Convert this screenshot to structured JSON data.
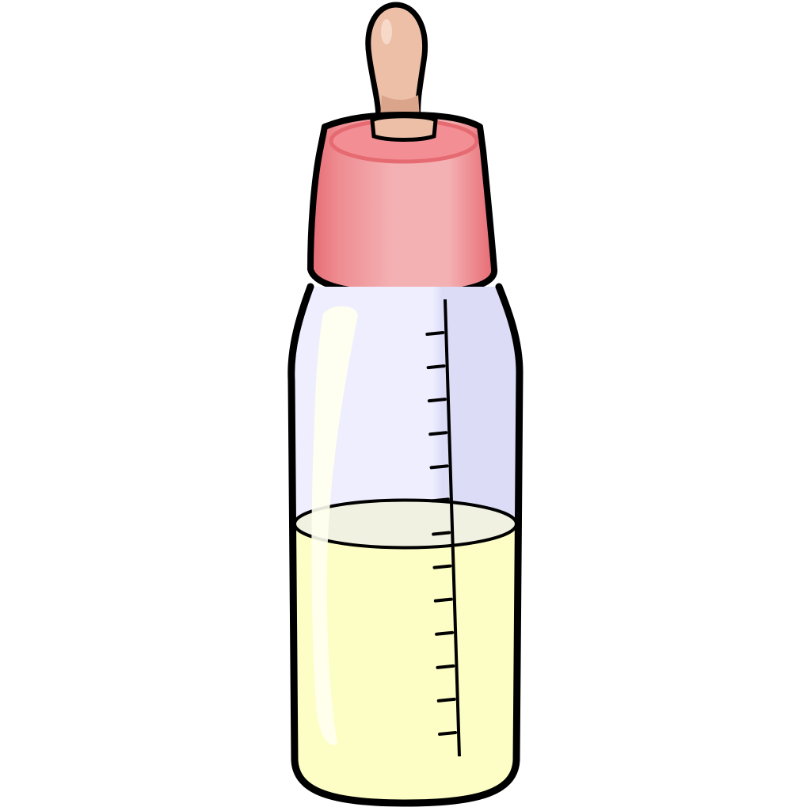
{
  "illustration": {
    "subject": "baby-bottle-icon",
    "fill_level": 0.55,
    "measurement_ticks": 13
  },
  "colors": {
    "background": "#ffffff",
    "outline": "#000000",
    "nipple": "#ecbfa6",
    "nipple_shade": "#dba58b",
    "cap_light": "#f4b1b3",
    "cap_mid": "#ee8c91",
    "cap_dark": "#e66a72",
    "cap_top": "#f38f94",
    "glass_light": "#eeeeff",
    "glass_shade": "#dcdcf7",
    "milk": "#fdfdc6",
    "milk_surface": "#f1f1e2",
    "highlight": "#fffff0"
  }
}
